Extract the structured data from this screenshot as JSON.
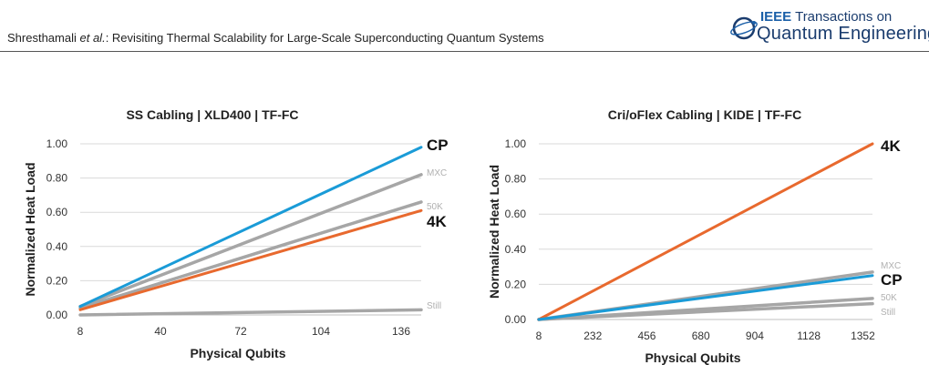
{
  "header": {
    "authors": "Shresthamali",
    "et_al": "et al.",
    "title_rest": ": Revisiting Thermal Scalability for Large-Scale Superconducting Quantum Systems"
  },
  "logo": {
    "ieee": "IEEE",
    "transactions": " Transactions on",
    "journal": "Quantum Engineering"
  },
  "colors": {
    "cp": "#1a9bd7",
    "four_k": "#e8692e",
    "grey": "#a6a6a6",
    "text": "#333333"
  },
  "chart_data": [
    {
      "type": "line",
      "title": "SS Cabling | XLD400 | TF-FC",
      "xlabel": "Physical Qubits",
      "ylabel": "Normalized Heat Load",
      "x_ticks": [
        "8",
        "40",
        "72",
        "104",
        "136"
      ],
      "y_ticks": [
        "0.00",
        "0.20",
        "0.40",
        "0.60",
        "0.80",
        "1.00"
      ],
      "xlim": [
        8,
        144
      ],
      "ylim": [
        0,
        1
      ],
      "grid": true,
      "series": [
        {
          "name": "CP",
          "key": "cp",
          "x": [
            8,
            144
          ],
          "y": [
            0.05,
            0.98
          ]
        },
        {
          "name": "MXC",
          "key": "grey",
          "x": [
            8,
            144
          ],
          "y": [
            0.05,
            0.82
          ]
        },
        {
          "name": "50K",
          "key": "grey",
          "x": [
            8,
            144
          ],
          "y": [
            0.04,
            0.66
          ]
        },
        {
          "name": "4K",
          "key": "four_k",
          "x": [
            8,
            144
          ],
          "y": [
            0.03,
            0.61
          ]
        },
        {
          "name": "Still",
          "key": "grey",
          "x": [
            8,
            144
          ],
          "y": [
            0.0,
            0.03
          ]
        }
      ]
    },
    {
      "type": "line",
      "title": "Cri/oFlex Cabling | KIDE | TF-FC",
      "xlabel": "Physical Qubits",
      "ylabel": "Normalized Heat Load",
      "x_ticks": [
        "8",
        "232",
        "456",
        "680",
        "904",
        "1128",
        "1352"
      ],
      "y_ticks": [
        "0.00",
        "0.20",
        "0.40",
        "0.60",
        "0.80",
        "1.00"
      ],
      "xlim": [
        8,
        1392
      ],
      "ylim": [
        0,
        1
      ],
      "grid": true,
      "series": [
        {
          "name": "4K",
          "key": "four_k",
          "x": [
            8,
            1392
          ],
          "y": [
            0.0,
            1.0
          ]
        },
        {
          "name": "MXC",
          "key": "grey",
          "x": [
            8,
            1392
          ],
          "y": [
            0.0,
            0.27
          ]
        },
        {
          "name": "CP",
          "key": "cp",
          "x": [
            8,
            1392
          ],
          "y": [
            0.0,
            0.25
          ]
        },
        {
          "name": "50K",
          "key": "grey",
          "x": [
            8,
            1392
          ],
          "y": [
            0.0,
            0.12
          ]
        },
        {
          "name": "Still",
          "key": "grey",
          "x": [
            8,
            1392
          ],
          "y": [
            0.0,
            0.09
          ]
        }
      ]
    }
  ]
}
